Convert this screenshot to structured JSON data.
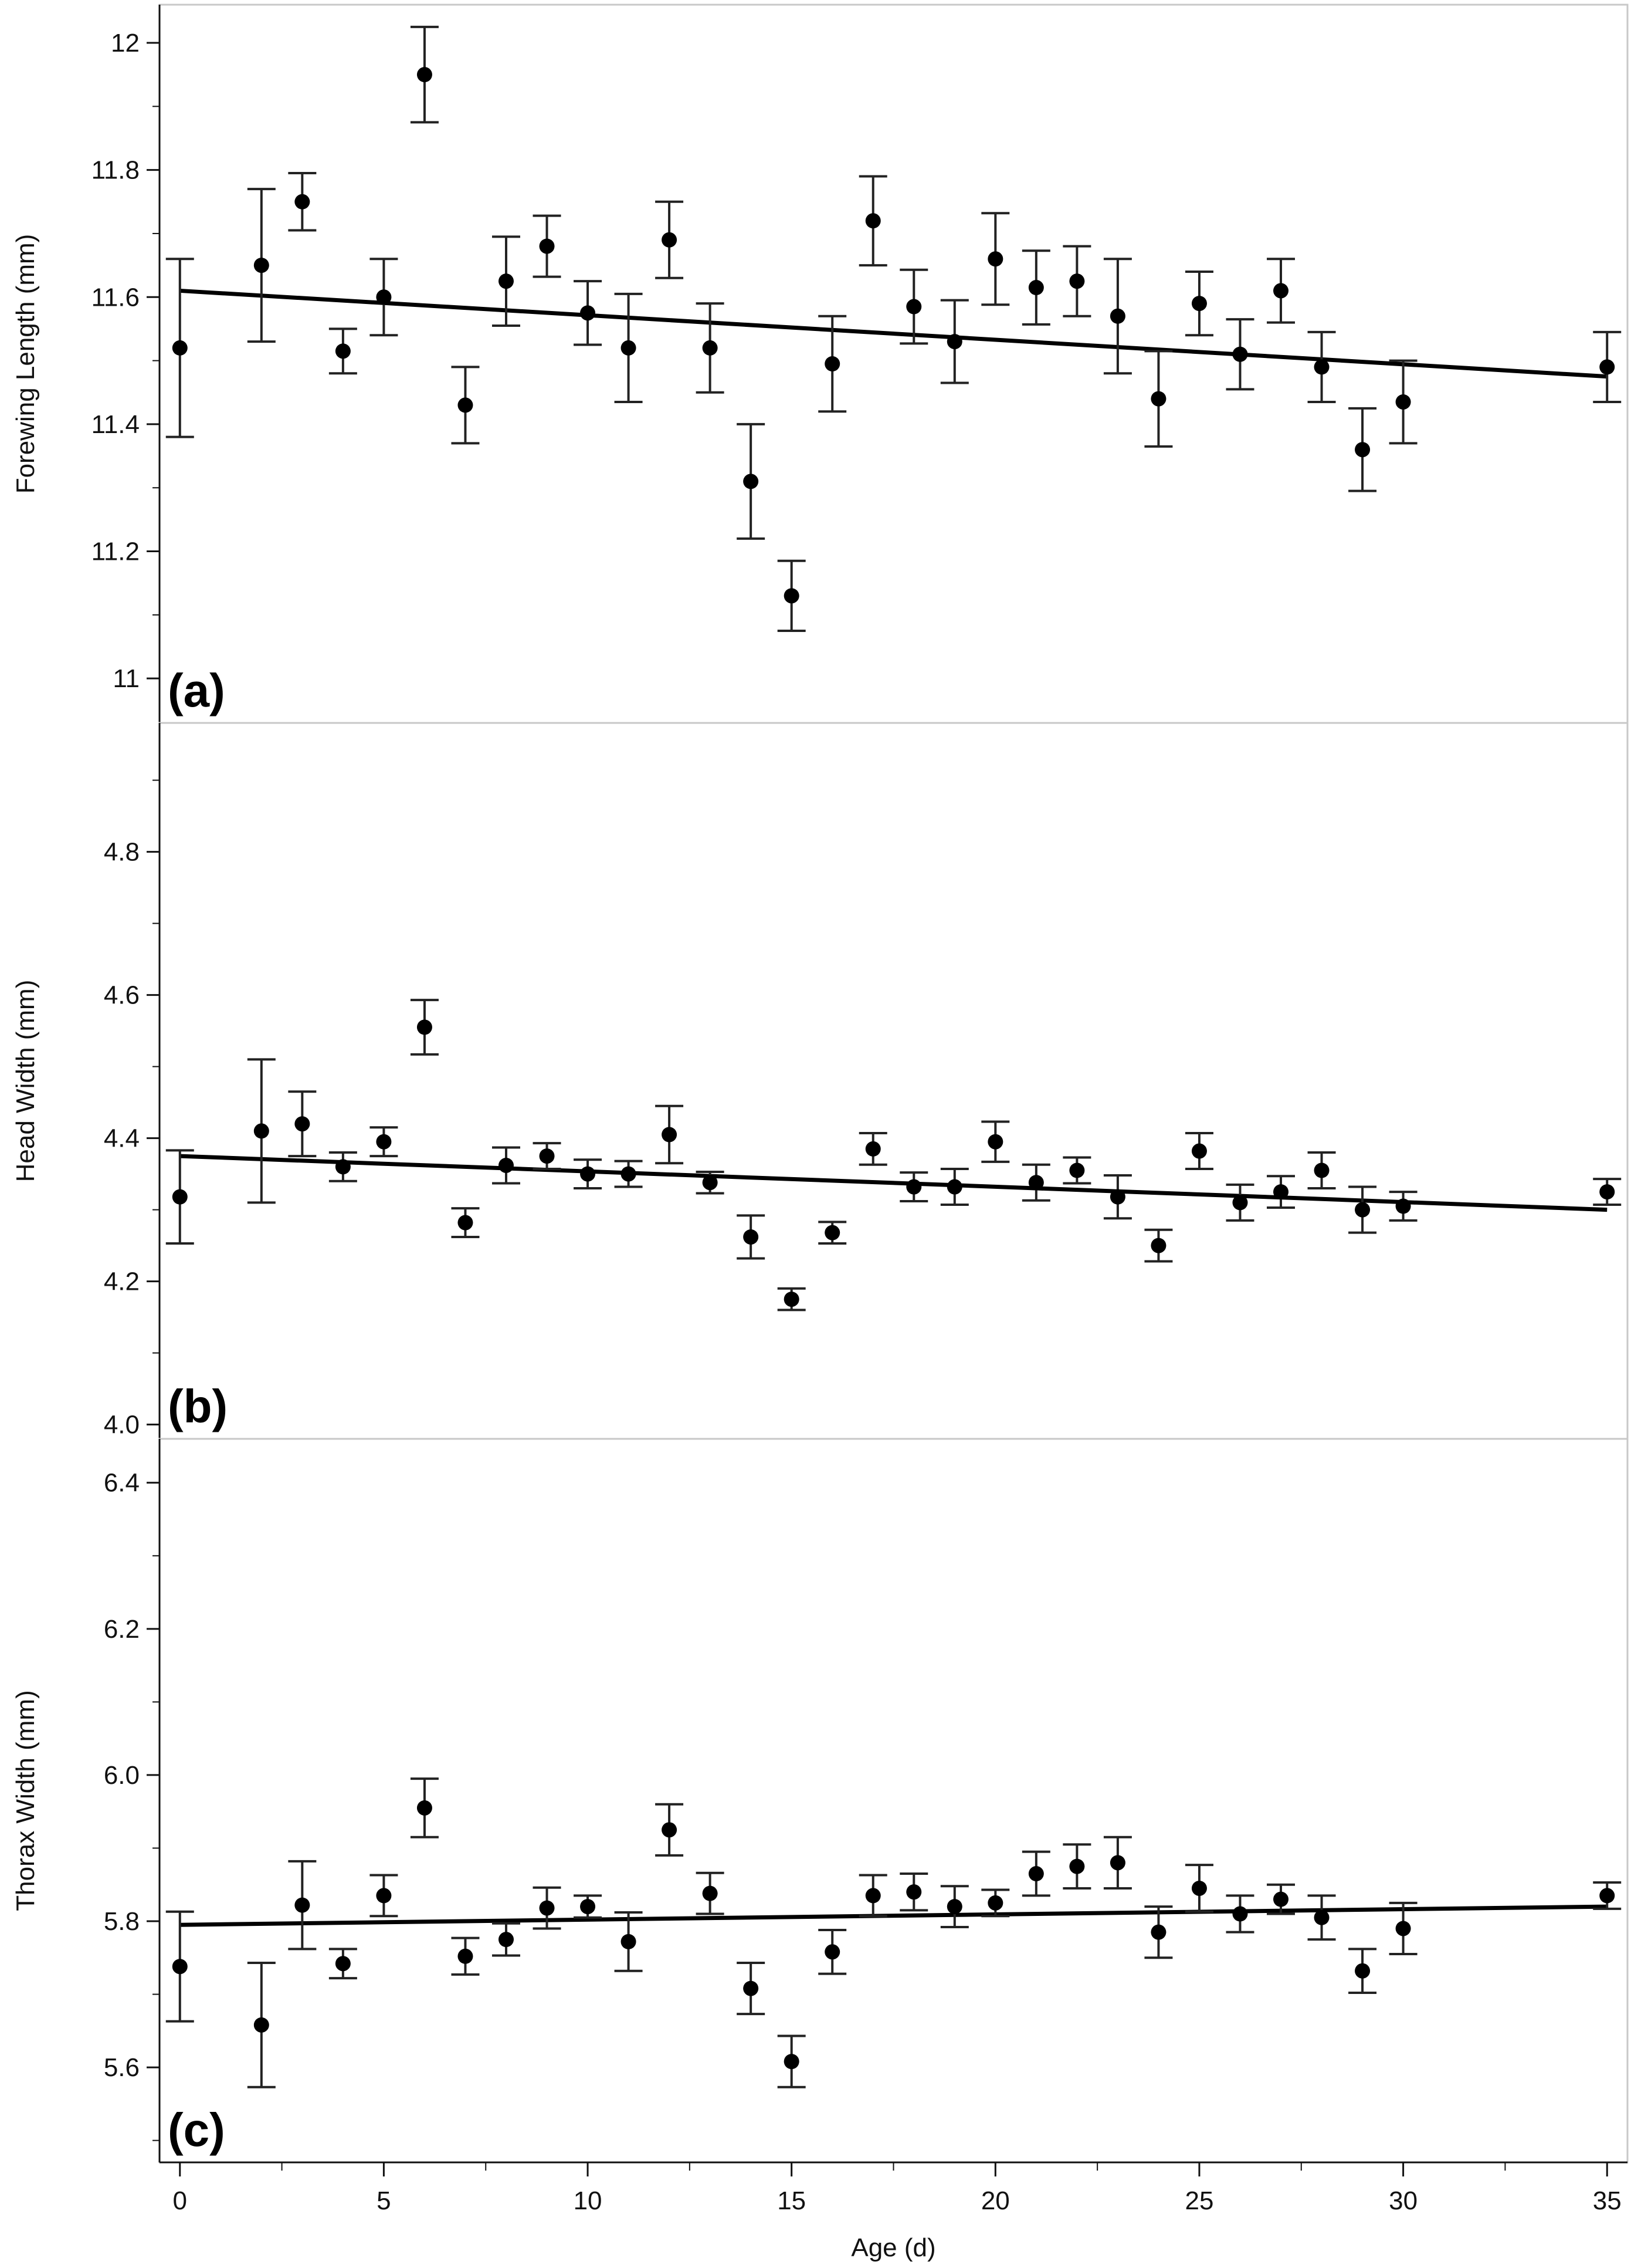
{
  "chart_data": [
    {
      "type": "scatter",
      "panel_label": "(a)",
      "ylabel": "Forewing Length (mm)",
      "ylim": [
        10.93,
        12.06
      ],
      "yticks": [
        11,
        11.2,
        11.4,
        11.6,
        11.8,
        12
      ],
      "ytick_labels": [
        "11",
        "11.2",
        "11.4",
        "11.6",
        "11.8",
        "12"
      ],
      "fit_line": {
        "x": [
          0,
          35
        ],
        "y": [
          11.61,
          11.475
        ]
      },
      "series": [
        {
          "name": "Forewing Length",
          "x": [
            0,
            2,
            3,
            4,
            5,
            6,
            7,
            8,
            9,
            10,
            11,
            12,
            13,
            14,
            15,
            16,
            17,
            18,
            19,
            20,
            21,
            22,
            23,
            24,
            25,
            26,
            27,
            28,
            29,
            30,
            35
          ],
          "y": [
            11.52,
            11.65,
            11.75,
            11.515,
            11.6,
            11.95,
            11.43,
            11.625,
            11.68,
            11.575,
            11.52,
            11.69,
            11.52,
            11.31,
            11.13,
            11.495,
            11.72,
            11.585,
            11.53,
            11.66,
            11.615,
            11.625,
            11.57,
            11.44,
            11.59,
            11.51,
            11.61,
            11.49,
            11.36,
            11.435,
            11.49
          ],
          "err": [
            0.14,
            0.12,
            0.045,
            0.035,
            0.06,
            0.075,
            0.06,
            0.07,
            0.048,
            0.05,
            0.085,
            0.06,
            0.07,
            0.09,
            0.055,
            0.075,
            0.07,
            0.058,
            0.065,
            0.072,
            0.058,
            0.055,
            0.09,
            0.075,
            0.05,
            0.055,
            0.05,
            0.055,
            0.065,
            0.065,
            0.055
          ]
        }
      ]
    },
    {
      "type": "scatter",
      "panel_label": "(b)",
      "ylabel": "Head Width (mm)",
      "ylim": [
        3.98,
        4.98
      ],
      "yticks": [
        4.0,
        4.2,
        4.4,
        4.6,
        4.8
      ],
      "ytick_labels": [
        "4.0",
        "4.2",
        "4.4",
        "4.6",
        "4.8"
      ],
      "fit_line": {
        "x": [
          0,
          35
        ],
        "y": [
          4.375,
          4.3
        ]
      },
      "series": [
        {
          "name": "Head Width",
          "x": [
            0,
            2,
            3,
            4,
            5,
            6,
            7,
            8,
            9,
            10,
            11,
            12,
            13,
            14,
            15,
            16,
            17,
            18,
            19,
            20,
            21,
            22,
            23,
            24,
            25,
            26,
            27,
            28,
            29,
            30,
            35
          ],
          "y": [
            4.318,
            4.41,
            4.42,
            4.36,
            4.395,
            4.555,
            4.282,
            4.362,
            4.375,
            4.35,
            4.35,
            4.405,
            4.338,
            4.262,
            4.175,
            4.268,
            4.385,
            4.332,
            4.332,
            4.395,
            4.338,
            4.355,
            4.318,
            4.25,
            4.382,
            4.31,
            4.325,
            4.355,
            4.3,
            4.305,
            4.325
          ],
          "err": [
            0.065,
            0.1,
            0.045,
            0.02,
            0.02,
            0.038,
            0.02,
            0.025,
            0.018,
            0.02,
            0.018,
            0.04,
            0.015,
            0.03,
            0.015,
            0.015,
            0.022,
            0.02,
            0.025,
            0.028,
            0.025,
            0.018,
            0.03,
            0.022,
            0.025,
            0.025,
            0.022,
            0.025,
            0.032,
            0.02,
            0.018
          ]
        }
      ]
    },
    {
      "type": "scatter",
      "panel_label": "(c)",
      "xlabel": "Age (d)",
      "ylabel": "Thorax Width (mm)",
      "xlim": [
        -0.5,
        35.5
      ],
      "xticks": [
        0,
        5,
        10,
        15,
        20,
        25,
        30,
        35
      ],
      "xtick_labels": [
        "0",
        "5",
        "10",
        "15",
        "20",
        "25",
        "30",
        "35"
      ],
      "ylim": [
        5.47,
        6.46
      ],
      "yticks": [
        5.6,
        5.8,
        6.0,
        6.2,
        6.4
      ],
      "ytick_labels": [
        "5.6",
        "5.8",
        "6.0",
        "6.2",
        "6.4"
      ],
      "fit_line": {
        "x": [
          0,
          35
        ],
        "y": [
          5.795,
          5.82
        ]
      },
      "series": [
        {
          "name": "Thorax Width",
          "x": [
            0,
            2,
            3,
            4,
            5,
            6,
            7,
            8,
            9,
            10,
            11,
            12,
            13,
            14,
            15,
            16,
            17,
            18,
            19,
            20,
            21,
            22,
            23,
            24,
            25,
            26,
            27,
            28,
            29,
            30,
            35
          ],
          "y": [
            5.738,
            5.658,
            5.822,
            5.742,
            5.835,
            5.955,
            5.752,
            5.775,
            5.818,
            5.82,
            5.772,
            5.925,
            5.838,
            5.708,
            5.608,
            5.758,
            5.835,
            5.84,
            5.82,
            5.825,
            5.865,
            5.875,
            5.88,
            5.785,
            5.845,
            5.81,
            5.83,
            5.805,
            5.732,
            5.79,
            5.835
          ],
          "err": [
            0.075,
            0.085,
            0.06,
            0.02,
            0.028,
            0.04,
            0.025,
            0.022,
            0.028,
            0.015,
            0.04,
            0.035,
            0.028,
            0.035,
            0.035,
            0.03,
            0.028,
            0.025,
            0.028,
            0.018,
            0.03,
            0.03,
            0.035,
            0.035,
            0.032,
            0.025,
            0.02,
            0.03,
            0.03,
            0.035,
            0.018
          ]
        }
      ]
    }
  ]
}
